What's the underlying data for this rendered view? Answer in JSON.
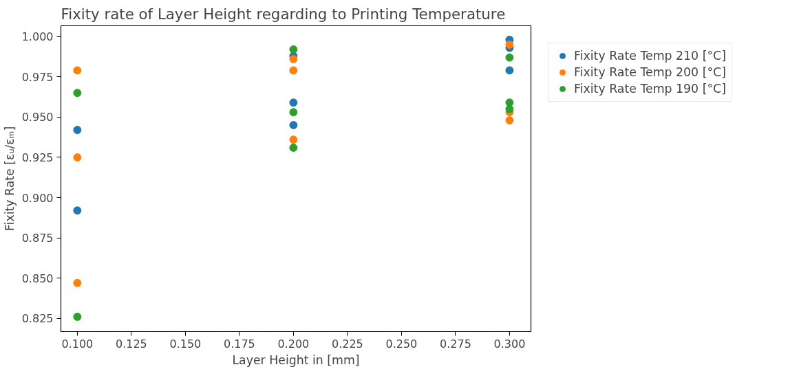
{
  "chart_data": {
    "type": "scatter",
    "title": "Fixity rate of Layer Height regarding to Printing Temperature",
    "xlabel": "Layer Height in [mm]",
    "ylabel": "Fixity Rate [εᵤ/εₘ]",
    "xlim": [
      0.0924,
      0.3099
    ],
    "ylim": [
      0.8168,
      1.0067
    ],
    "xticks": [
      {
        "value": 0.1,
        "label": "0.100"
      },
      {
        "value": 0.125,
        "label": "0.125"
      },
      {
        "value": 0.15,
        "label": "0.150"
      },
      {
        "value": 0.175,
        "label": "0.175"
      },
      {
        "value": 0.2,
        "label": "0.200"
      },
      {
        "value": 0.225,
        "label": "0.225"
      },
      {
        "value": 0.25,
        "label": "0.250"
      },
      {
        "value": 0.275,
        "label": "0.275"
      },
      {
        "value": 0.3,
        "label": "0.300"
      }
    ],
    "yticks": [
      {
        "value": 0.825,
        "label": "0.825"
      },
      {
        "value": 0.85,
        "label": "0.850"
      },
      {
        "value": 0.875,
        "label": "0.875"
      },
      {
        "value": 0.9,
        "label": "0.900"
      },
      {
        "value": 0.925,
        "label": "0.925"
      },
      {
        "value": 0.95,
        "label": "0.950"
      },
      {
        "value": 0.975,
        "label": "0.975"
      },
      {
        "value": 1.0,
        "label": "1.000"
      }
    ],
    "grid": false,
    "legend": "top right",
    "marker": "circle",
    "series": [
      {
        "name": "Fixity Rate Temp 210 [°C]",
        "color": "#1f77b4",
        "x": [
          0.1,
          0.1,
          0.2,
          0.2,
          0.2,
          0.3,
          0.3,
          0.3
        ],
        "values": [
          0.942,
          0.892,
          0.988,
          0.959,
          0.945,
          0.998,
          0.993,
          0.979
        ]
      },
      {
        "name": "Fixity Rate Temp 200 [°C]",
        "color": "#ff7f0e",
        "x": [
          0.1,
          0.1,
          0.1,
          0.2,
          0.2,
          0.2,
          0.3,
          0.3,
          0.3
        ],
        "values": [
          0.979,
          0.925,
          0.847,
          0.986,
          0.979,
          0.936,
          0.995,
          0.953,
          0.948
        ]
      },
      {
        "name": "Fixity Rate Temp 190 [°C]",
        "color": "#2ca02c",
        "x": [
          0.1,
          0.1,
          0.2,
          0.2,
          0.2,
          0.3,
          0.3,
          0.3
        ],
        "values": [
          0.965,
          0.826,
          0.992,
          0.953,
          0.931,
          0.987,
          0.959,
          0.955
        ]
      }
    ]
  }
}
